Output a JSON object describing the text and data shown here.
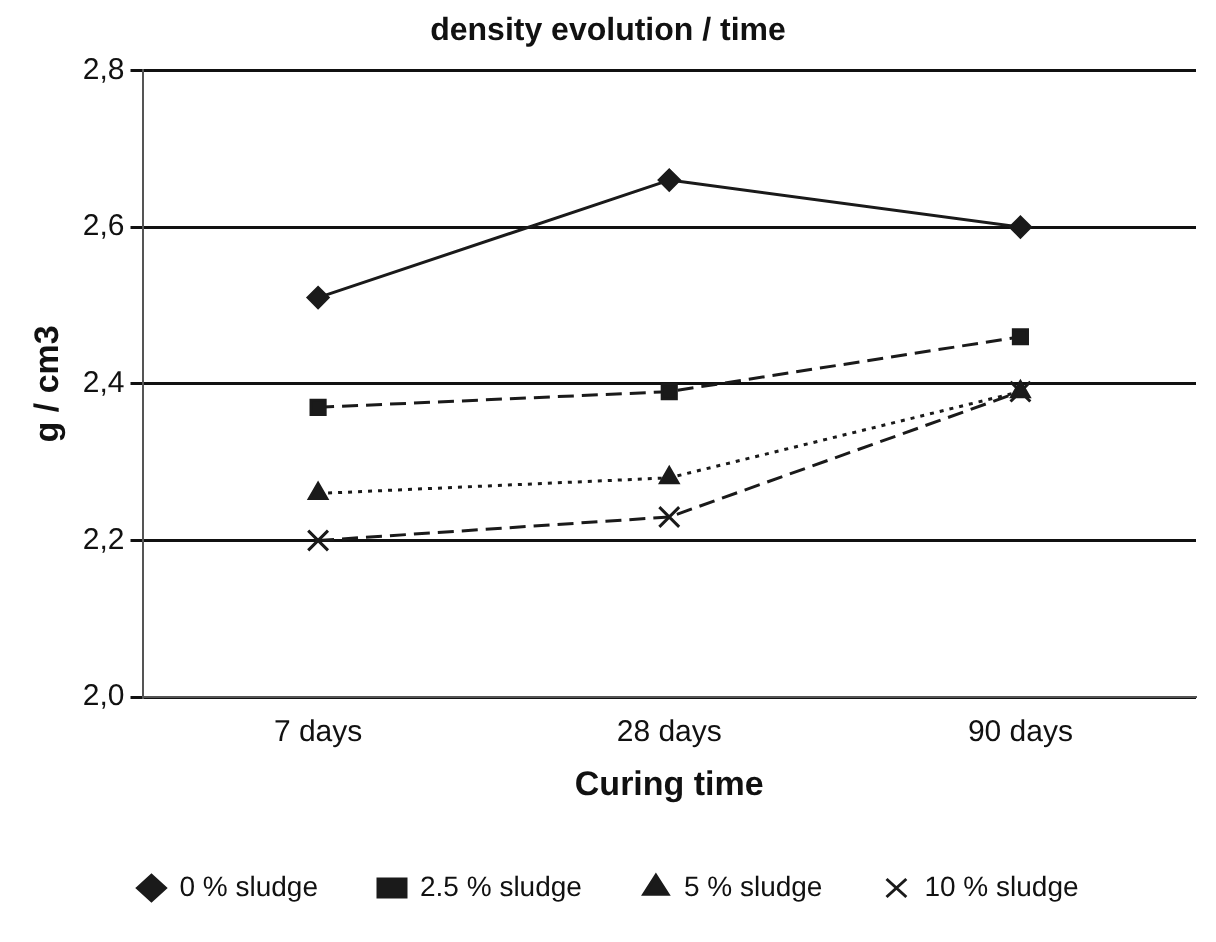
{
  "chart_data": {
    "type": "line",
    "title": "density evolution / time",
    "xlabel": "Curing time",
    "ylabel": "g / cm3",
    "categories": [
      "7 days",
      "28 days",
      "90 days"
    ],
    "series": [
      {
        "name": "0 % sludge",
        "color": "#1a1a1a",
        "values": [
          2.51,
          2.66,
          2.6
        ],
        "marker": "diamond",
        "line_style": "solid"
      },
      {
        "name": "2.5 % sludge",
        "color": "#1a1a1a",
        "values": [
          2.37,
          2.39,
          2.46
        ],
        "marker": "square",
        "line_style": "dashed"
      },
      {
        "name": "5 % sludge",
        "color": "#1a1a1a",
        "values": [
          2.26,
          2.28,
          2.39
        ],
        "marker": "triangle",
        "line_style": "dotted"
      },
      {
        "name": "10 % sludge",
        "color": "#1a1a1a",
        "values": [
          2.2,
          2.23,
          2.39
        ],
        "marker": "cross",
        "line_style": "dashed"
      }
    ],
    "ylim": [
      2.0,
      2.8
    ],
    "yticks": [
      {
        "value": 2.0,
        "label": "2,0"
      },
      {
        "value": 2.2,
        "label": "2,2"
      },
      {
        "value": 2.4,
        "label": "2,4"
      },
      {
        "value": 2.6,
        "label": "2,6"
      },
      {
        "value": 2.8,
        "label": "2,8"
      }
    ],
    "grid": "y",
    "legend": "bottom"
  }
}
